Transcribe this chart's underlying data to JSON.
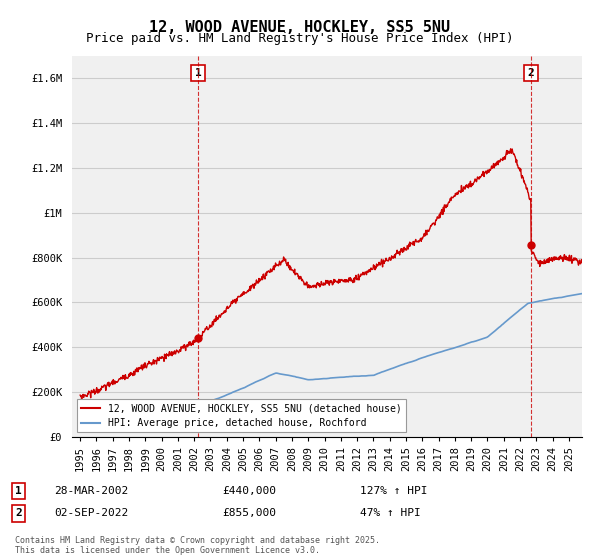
{
  "title": "12, WOOD AVENUE, HOCKLEY, SS5 5NU",
  "subtitle": "Price paid vs. HM Land Registry's House Price Index (HPI)",
  "ylim": [
    0,
    1700000
  ],
  "xlim_min": 1994.5,
  "xlim_max": 2025.8,
  "yticks": [
    0,
    200000,
    400000,
    600000,
    800000,
    1000000,
    1200000,
    1400000,
    1600000
  ],
  "ytick_labels": [
    "£0",
    "£200K",
    "£400K",
    "£600K",
    "£800K",
    "£1M",
    "£1.2M",
    "£1.4M",
    "£1.6M"
  ],
  "xticks": [
    1995,
    1996,
    1997,
    1998,
    1999,
    2000,
    2001,
    2002,
    2003,
    2004,
    2005,
    2006,
    2007,
    2008,
    2009,
    2010,
    2011,
    2012,
    2013,
    2014,
    2015,
    2016,
    2017,
    2018,
    2019,
    2020,
    2021,
    2022,
    2023,
    2024,
    2025
  ],
  "point1_x": 2002.24,
  "point1_y": 440000,
  "point1_label": "1",
  "point2_x": 2022.67,
  "point2_y": 855000,
  "point2_label": "2",
  "legend_line1": "12, WOOD AVENUE, HOCKLEY, SS5 5NU (detached house)",
  "legend_line2": "HPI: Average price, detached house, Rochford",
  "ann1_num": "1",
  "ann1_date": "28-MAR-2002",
  "ann1_price": "£440,000",
  "ann1_hpi": "127% ↑ HPI",
  "ann2_num": "2",
  "ann2_date": "02-SEP-2022",
  "ann2_price": "£855,000",
  "ann2_hpi": "47% ↑ HPI",
  "footer": "Contains HM Land Registry data © Crown copyright and database right 2025.\nThis data is licensed under the Open Government Licence v3.0.",
  "red_color": "#cc0000",
  "blue_color": "#6699cc",
  "bg_color": "#f0f0f0",
  "grid_color": "#cccccc",
  "title_fontsize": 11,
  "subtitle_fontsize": 9,
  "tick_fontsize": 7.5
}
